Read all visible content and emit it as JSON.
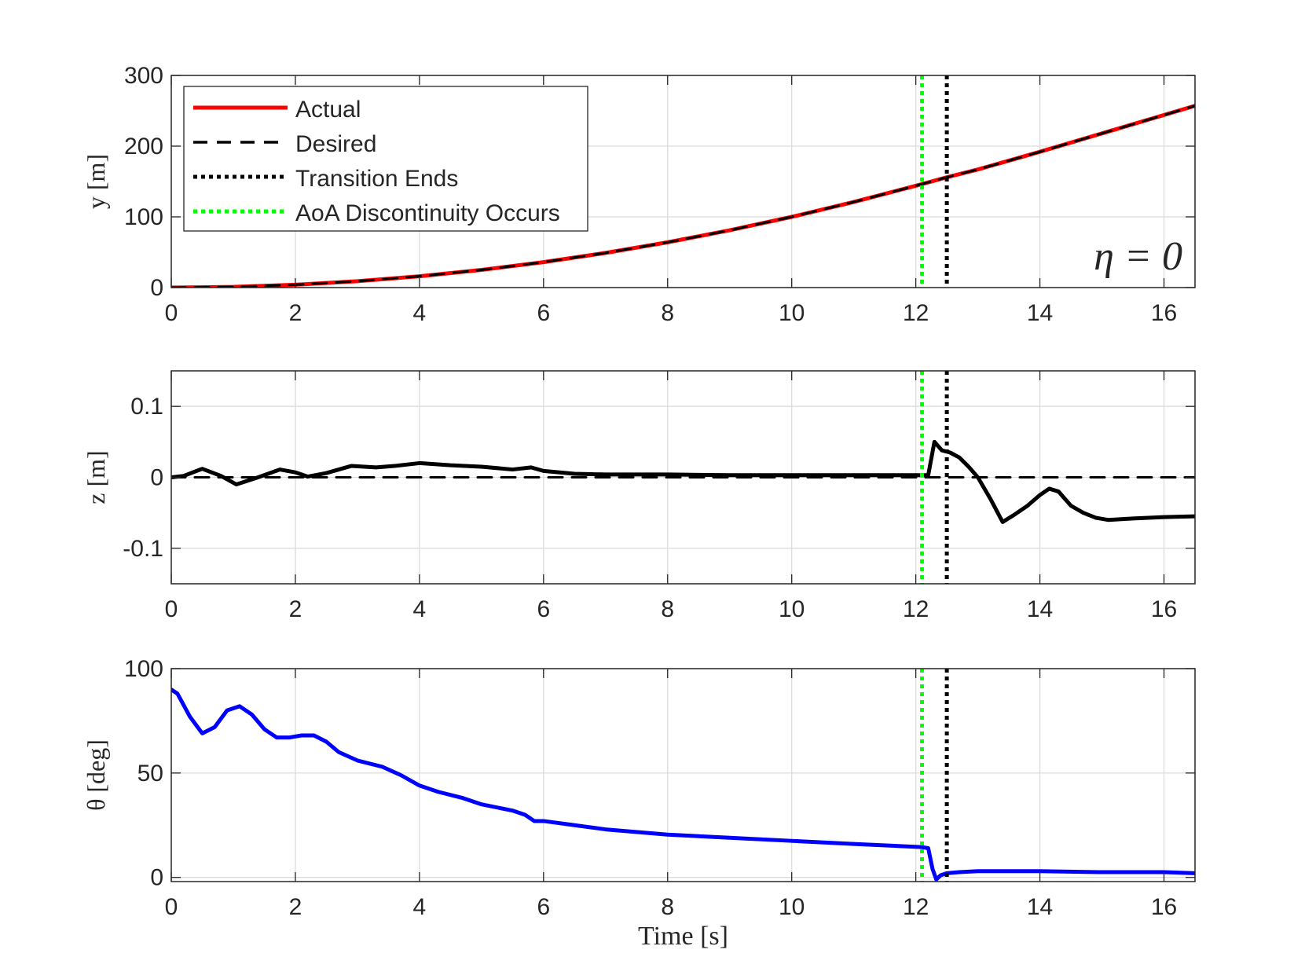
{
  "chart_data": [
    {
      "type": "line",
      "id": "panel-y",
      "ylabel": "y [m]",
      "xlabel": "",
      "xlim": [
        0,
        16.5
      ],
      "ylim": [
        0,
        300
      ],
      "xticks": [
        0,
        2,
        4,
        6,
        8,
        10,
        12,
        14,
        16
      ],
      "yticks": [
        0,
        100,
        200,
        300
      ],
      "xtick_labels": [
        "0",
        "2",
        "4",
        "6",
        "8",
        "10",
        "12",
        "14",
        "16"
      ],
      "ytick_labels": [
        "0",
        "100",
        "200",
        "300"
      ],
      "grid": true,
      "annotation": "η = 0",
      "legend": {
        "placement": "top-left",
        "entries": [
          "Actual",
          "Desired",
          "Transition Ends",
          "AoA Discontinuity Occurs"
        ]
      },
      "series": [
        {
          "name": "Actual",
          "color": "#ff0000",
          "style": "solid",
          "x": [
            0,
            1,
            2,
            3,
            4,
            5,
            6,
            7,
            8,
            9,
            10,
            11,
            12,
            12.5,
            13,
            14,
            15,
            16,
            16.5
          ],
          "y": [
            0,
            1,
            4,
            9,
            16,
            25,
            36,
            49,
            64,
            81,
            100,
            121,
            144,
            156,
            167,
            192,
            218,
            244,
            257
          ]
        },
        {
          "name": "Desired",
          "color": "#000000",
          "style": "dashed",
          "x": [
            0,
            1,
            2,
            3,
            4,
            5,
            6,
            7,
            8,
            9,
            10,
            11,
            12,
            12.5,
            13,
            14,
            15,
            16,
            16.5
          ],
          "y": [
            0,
            1,
            4,
            9,
            16,
            25,
            36,
            49,
            64,
            81,
            100,
            121,
            144,
            156,
            167,
            192,
            218,
            244,
            257
          ]
        }
      ],
      "vlines": [
        {
          "name": "Transition Ends",
          "x": 12.5,
          "color": "#000000",
          "style": "dotted"
        },
        {
          "name": "AoA Discontinuity Occurs",
          "x": 12.1,
          "color": "#00ff00",
          "style": "dotted"
        }
      ]
    },
    {
      "type": "line",
      "id": "panel-z",
      "ylabel": "z [m]",
      "xlabel": "",
      "xlim": [
        0,
        16.5
      ],
      "ylim": [
        -0.15,
        0.15
      ],
      "xticks": [
        0,
        2,
        4,
        6,
        8,
        10,
        12,
        14,
        16
      ],
      "yticks": [
        -0.1,
        0,
        0.1
      ],
      "xtick_labels": [
        "0",
        "2",
        "4",
        "6",
        "8",
        "10",
        "12",
        "14",
        "16"
      ],
      "ytick_labels": [
        "-0.1",
        "0",
        "0.1"
      ],
      "grid": true,
      "series": [
        {
          "name": "Actual",
          "color": "#000000",
          "style": "solid",
          "x": [
            0,
            0.2,
            0.5,
            0.8,
            1.05,
            1.4,
            1.75,
            2.0,
            2.2,
            2.5,
            2.9,
            3.3,
            3.6,
            4.0,
            4.5,
            5.0,
            5.5,
            5.8,
            6.0,
            6.5,
            7,
            8,
            9,
            10,
            11,
            12.1,
            12.2,
            12.3,
            12.42,
            12.55,
            12.7,
            12.85,
            13.0,
            13.2,
            13.4,
            13.6,
            13.8,
            14.0,
            14.15,
            14.3,
            14.5,
            14.7,
            14.9,
            15.1,
            15.5,
            16.0,
            16.5
          ],
          "y": [
            0,
            0.002,
            0.012,
            0.002,
            -0.01,
            0.0,
            0.011,
            0.007,
            0.001,
            0.006,
            0.016,
            0.014,
            0.016,
            0.02,
            0.017,
            0.015,
            0.011,
            0.014,
            0.009,
            0.005,
            0.004,
            0.004,
            0.003,
            0.003,
            0.003,
            0.003,
            0.003,
            0.05,
            0.038,
            0.035,
            0.028,
            0.015,
            0.0,
            -0.03,
            -0.063,
            -0.052,
            -0.04,
            -0.025,
            -0.016,
            -0.02,
            -0.04,
            -0.05,
            -0.057,
            -0.06,
            -0.058,
            -0.056,
            -0.055
          ]
        },
        {
          "name": "Desired",
          "color": "#000000",
          "style": "dashed",
          "x": [
            0,
            16.5
          ],
          "y": [
            0,
            0
          ]
        }
      ],
      "vlines": [
        {
          "name": "Transition Ends",
          "x": 12.5,
          "color": "#000000",
          "style": "dotted"
        },
        {
          "name": "AoA Discontinuity Occurs",
          "x": 12.1,
          "color": "#00ff00",
          "style": "dotted"
        }
      ]
    },
    {
      "type": "line",
      "id": "panel-theta",
      "ylabel": "θ [deg]",
      "xlabel": "Time [s]",
      "xlim": [
        0,
        16.5
      ],
      "ylim": [
        -2,
        100
      ],
      "xticks": [
        0,
        2,
        4,
        6,
        8,
        10,
        12,
        14,
        16
      ],
      "yticks": [
        0,
        50,
        100
      ],
      "xtick_labels": [
        "0",
        "2",
        "4",
        "6",
        "8",
        "10",
        "12",
        "14",
        "16"
      ],
      "ytick_labels": [
        "0",
        "50",
        "100"
      ],
      "grid": true,
      "series": [
        {
          "name": "θ",
          "color": "#0000ff",
          "style": "solid",
          "x": [
            0,
            0.1,
            0.3,
            0.5,
            0.7,
            0.9,
            1.1,
            1.3,
            1.5,
            1.7,
            1.9,
            2.1,
            2.3,
            2.5,
            2.7,
            3.0,
            3.4,
            3.7,
            4.0,
            4.3,
            4.7,
            5.0,
            5.5,
            5.7,
            5.85,
            6.0,
            6.5,
            7,
            8,
            9,
            10,
            11,
            12.1,
            12.2,
            12.27,
            12.33,
            12.4,
            12.5,
            12.7,
            13,
            14,
            15,
            16,
            16.5
          ],
          "y": [
            90,
            88,
            77,
            69,
            72,
            80,
            82,
            78,
            71,
            67,
            67,
            68,
            68,
            65,
            60,
            56,
            53,
            49,
            44,
            41,
            38,
            35,
            32,
            30,
            27,
            27,
            25,
            23,
            20.5,
            19,
            17.5,
            16,
            14.5,
            14,
            4,
            -1,
            1,
            2,
            2.5,
            3,
            3,
            2.5,
            2.5,
            2
          ]
        }
      ],
      "vlines": [
        {
          "name": "Transition Ends",
          "x": 12.5,
          "color": "#000000",
          "style": "dotted"
        },
        {
          "name": "AoA Discontinuity Occurs",
          "x": 12.1,
          "color": "#00ff00",
          "style": "dotted"
        }
      ]
    }
  ]
}
